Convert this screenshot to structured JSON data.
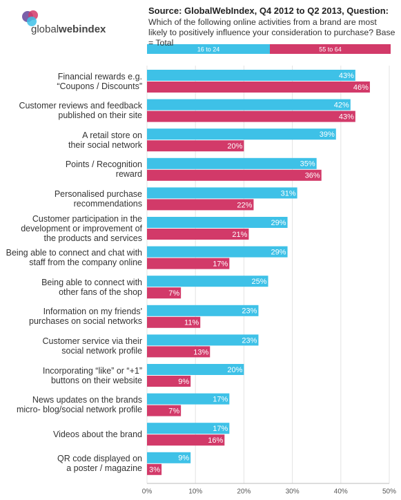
{
  "logo": {
    "light": "global",
    "bold": "webindex"
  },
  "chart_data": {
    "type": "bar",
    "orientation": "horizontal",
    "title": "Source:  GlobalWebIndex, Q4 2012 to Q2 2013, Question:",
    "subtitle": "Which of the following online activities from a brand are most likely to positively influence your consideration to purchase? Base = Total",
    "categories": [
      "Financial rewards e.g.\n“Coupons / Discounts”",
      "Customer reviews and feedback\npublished on their site",
      "A retail store on\ntheir social network",
      "Points / Recognition\nreward",
      "Personalised purchase\nrecommendations",
      "Customer participation in the\ndevelopment or improvement of\nthe  products and services",
      "Being able to connect and chat with\nstaff from the company online",
      "Being able to connect with\nother fans of the shop",
      "Information on my  friends'\npurchases on social networks",
      "Customer service via their\nsocial network profile",
      "Incorporating “like” or “+1”\nbuttons on their website",
      "News updates on the brands\nmicro- blog/social network profile",
      "Videos about the brand",
      "QR code displayed on\na poster / magazine"
    ],
    "series": [
      {
        "name": "16 to 24",
        "color": "#3ec1e7",
        "values": [
          43,
          42,
          39,
          35,
          31,
          29,
          29,
          25,
          23,
          23,
          20,
          17,
          17,
          9
        ],
        "value_labels": [
          "43%",
          "42%",
          "39%",
          "35%",
          "31%",
          "29%",
          "29%",
          "25%",
          "23%",
          "23%",
          "20%",
          "17%",
          "17%",
          "9%"
        ]
      },
      {
        "name": "55 to 64",
        "color": "#d23a69",
        "values": [
          46,
          43,
          20,
          36,
          22,
          21,
          17,
          7,
          11,
          13,
          9,
          7,
          16,
          3
        ],
        "value_labels": [
          "46%",
          "43%",
          "20%",
          "36%",
          "22%",
          "21%",
          "17%",
          "7%",
          "11%",
          "13%",
          "9%",
          "7%",
          "16%",
          "3%"
        ]
      }
    ],
    "xlim": [
      0,
      50
    ],
    "xticks": [
      {
        "value": 0,
        "label": "0%"
      },
      {
        "value": 10,
        "label": "10%"
      },
      {
        "value": 20,
        "label": "20%"
      },
      {
        "value": 30,
        "label": "30%"
      },
      {
        "value": 40,
        "label": "40%"
      },
      {
        "value": 50,
        "label": "50%"
      }
    ],
    "grid": true,
    "legend": "top"
  }
}
